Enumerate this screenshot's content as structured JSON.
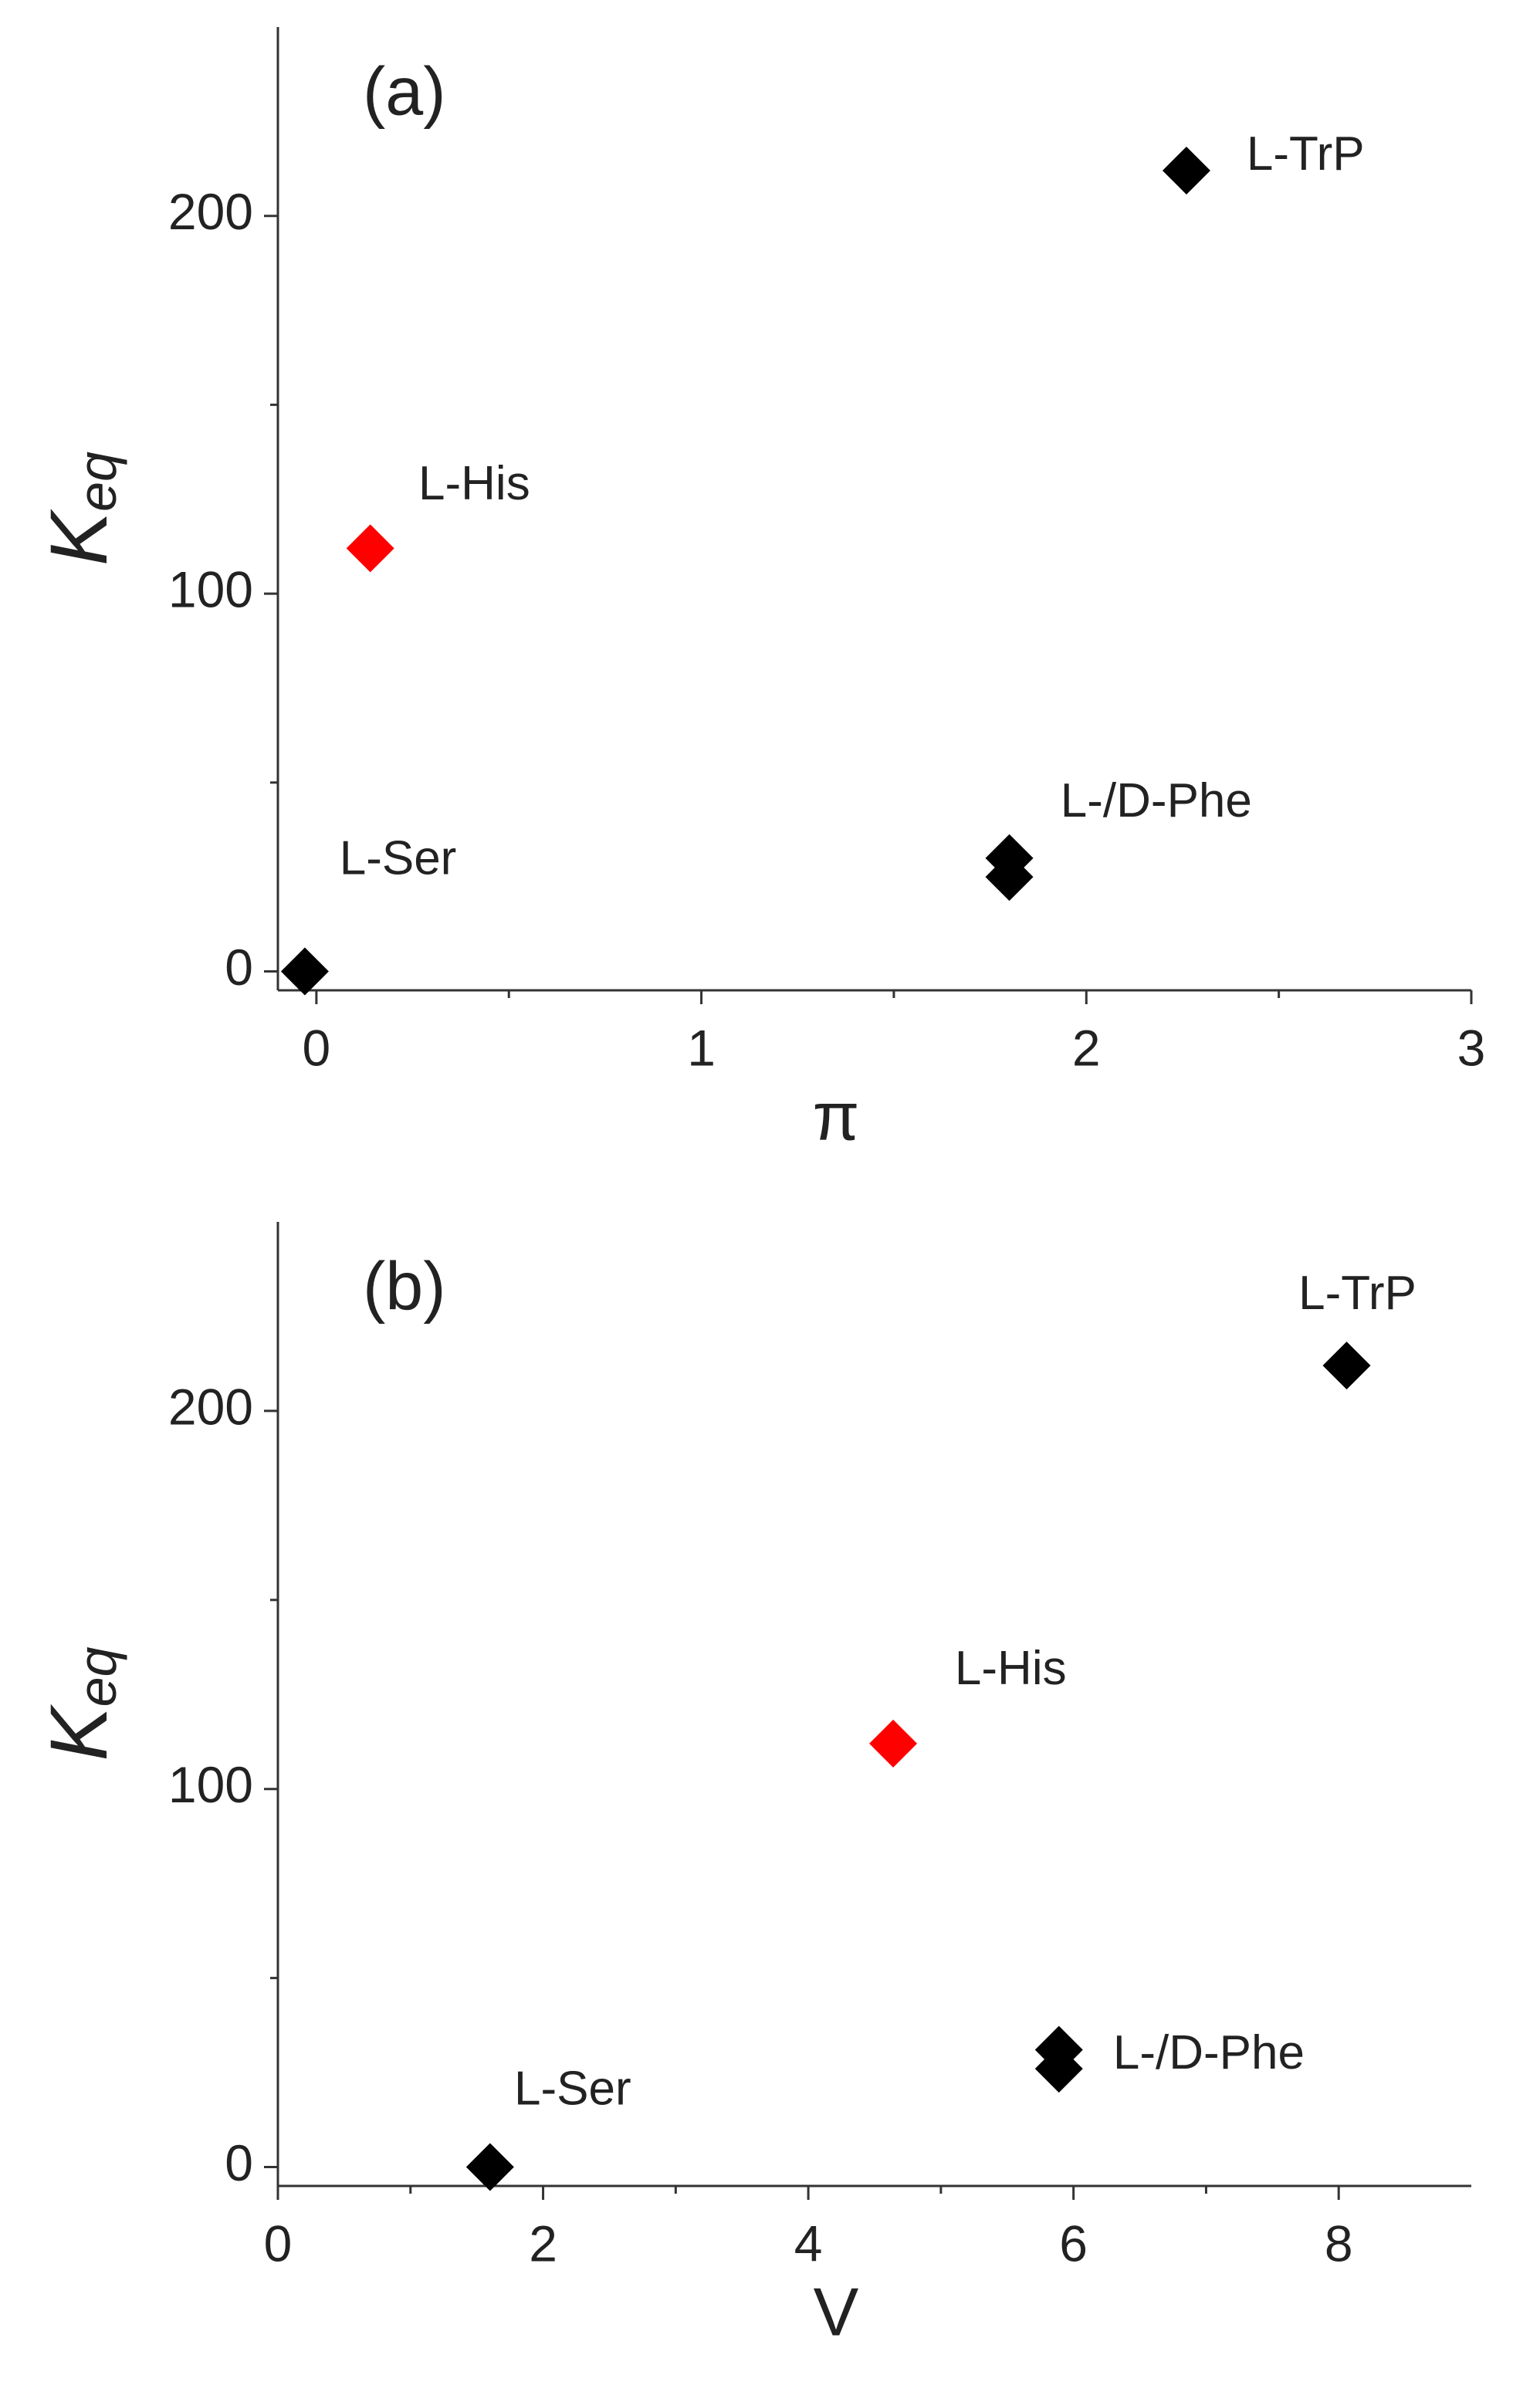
{
  "chart_data": [
    {
      "type": "scatter",
      "title": "(a)",
      "xlabel": "π",
      "ylabel": "K",
      "ylabel_subscript": "eq",
      "x": [
        -0.03,
        0.14,
        1.8,
        1.8,
        2.26
      ],
      "values": [
        0,
        112,
        30,
        25,
        212
      ],
      "labels": [
        "L-Ser",
        "L-His",
        "L-/D-Phe",
        null,
        "L-TrP"
      ],
      "colors": [
        "#000000",
        "#ff0000",
        "#000000",
        "#000000",
        "#000000"
      ],
      "xlim": [
        -0.1,
        3
      ],
      "xticks": [
        0,
        1,
        2,
        3
      ],
      "ylim": [
        -5,
        250
      ],
      "yticks": [
        0,
        100,
        200
      ]
    },
    {
      "type": "scatter",
      "title": "(b)",
      "xlabel": "V",
      "ylabel": "K",
      "ylabel_subscript": "eq",
      "x": [
        1.6,
        4.64,
        5.89,
        5.89,
        8.06
      ],
      "values": [
        0,
        112,
        31,
        26,
        212
      ],
      "labels": [
        "L-Ser",
        "L-His",
        "L-/D-Phe",
        null,
        "L-TrP"
      ],
      "colors": [
        "#000000",
        "#ff0000",
        "#000000",
        "#000000",
        "#000000"
      ],
      "xlim": [
        0,
        9
      ],
      "xticks": [
        0,
        2,
        4,
        6,
        8
      ],
      "ylim": [
        -5,
        250
      ],
      "yticks": [
        0,
        100,
        200
      ]
    }
  ]
}
